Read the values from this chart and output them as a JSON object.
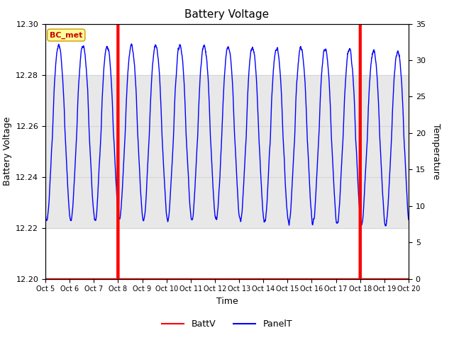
{
  "title": "Battery Voltage",
  "xlabel": "Time",
  "ylabel_left": "Battery Voltage",
  "ylabel_right": "Temperature",
  "xlim": [
    0,
    15
  ],
  "ylim_left": [
    12.2,
    12.3
  ],
  "ylim_right": [
    0,
    35
  ],
  "yticks_left": [
    12.2,
    12.22,
    12.24,
    12.26,
    12.28,
    12.3
  ],
  "yticks_right": [
    0,
    5,
    10,
    15,
    20,
    25,
    30,
    35
  ],
  "xtick_labels": [
    "Oct 5",
    "Oct 6",
    "Oct 7",
    "Oct 8",
    "Oct 9",
    "Oct 10",
    "Oct 11",
    "Oct 12",
    "Oct 13",
    "Oct 14",
    "Oct 15",
    "Oct 16",
    "Oct 17",
    "Oct 18",
    "Oct 19",
    "Oct 20"
  ],
  "xtick_positions": [
    0,
    1,
    2,
    3,
    4,
    5,
    6,
    7,
    8,
    9,
    10,
    11,
    12,
    13,
    14,
    15
  ],
  "vline_x1": 3,
  "vline_x2": 13,
  "vline_color": "#ff0000",
  "vline_linewidth": 1.5,
  "shade_ymin": 12.22,
  "shade_ymax": 12.28,
  "shade_color": "#e8e8e8",
  "label_text": "BC_met",
  "label_color": "#cc0000",
  "label_bgcolor": "#ffff99",
  "label_edgecolor": "#cc9900",
  "background_color": "#ffffff",
  "line_color_batv": "#ff0000",
  "line_color_panel": "#0000ff",
  "legend_labels": [
    "BattV",
    "PanelT"
  ],
  "batv_base": 12.2,
  "temp_min": 8,
  "temp_max": 33,
  "grid_color": "#cccccc",
  "title_fontsize": 11,
  "axis_fontsize": 9,
  "tick_fontsize": 8
}
